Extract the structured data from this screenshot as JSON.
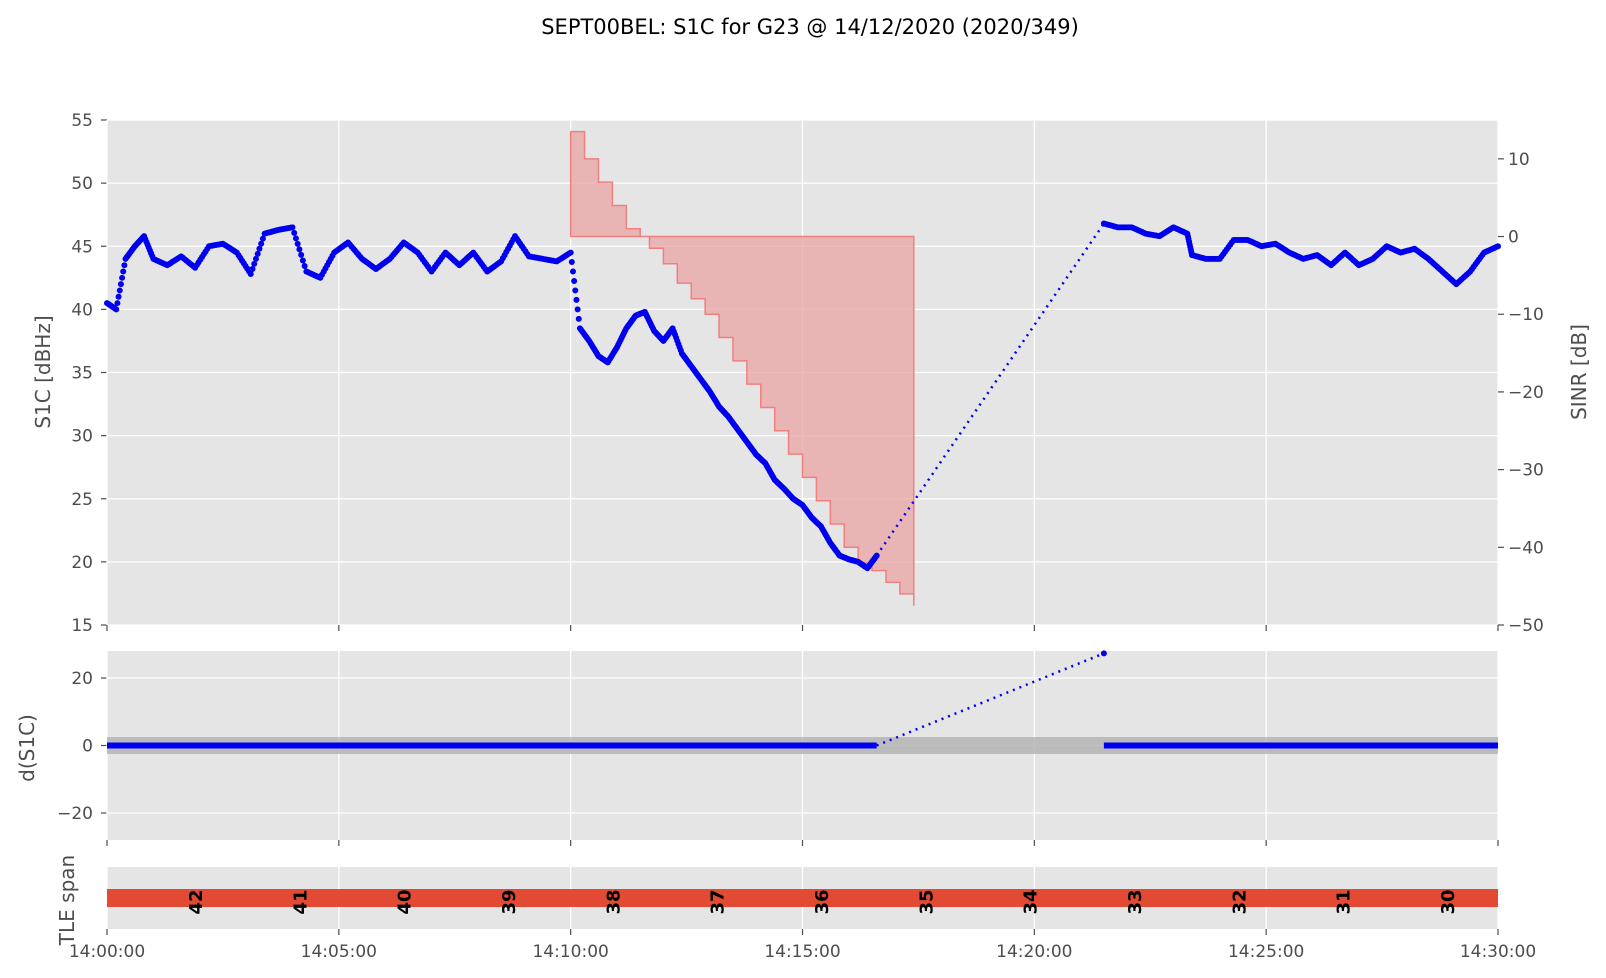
{
  "figure": {
    "title": "SEPT00BEL: S1C for G23 @ 14/12/2020 (2020/349)",
    "colors": {
      "series": "#0000ee",
      "sinr_fill": "#e8a3a3",
      "sinr_edge": "#f08080",
      "band": "#b0b0b0",
      "tle_bar": "#e24a33",
      "panel": "#e5e5e5"
    }
  },
  "chart_data": [
    {
      "type": "scatter",
      "name": "s1c-panel",
      "ylabel": "S1C [dBHz]",
      "ylabel_right": "SINR [dB]",
      "x_tick_labels": [
        "14:00:00",
        "14:05:00",
        "14:10:00",
        "14:15:00",
        "14:20:00",
        "14:25:00",
        "14:30:00"
      ],
      "x_ticks_min": [
        0,
        5,
        10,
        15,
        20,
        25,
        30
      ],
      "xlim": [
        0,
        30
      ],
      "ylim": [
        15,
        55
      ],
      "yticks": [
        15,
        20,
        25,
        30,
        35,
        40,
        45,
        50,
        55
      ],
      "ylim_right": [
        -50,
        15
      ],
      "yticks_right": [
        -50,
        -40,
        -30,
        -20,
        -10,
        0,
        10
      ],
      "grid": true,
      "series": [
        {
          "kind": "scatter",
          "x": [
            0.0,
            0.2,
            0.4,
            0.6,
            0.8,
            1.0,
            1.3,
            1.6,
            1.9,
            2.2,
            2.5,
            2.8,
            3.1,
            3.4,
            3.7,
            4.0,
            4.3,
            4.6,
            4.9,
            5.2,
            5.5,
            5.8,
            6.1,
            6.4,
            6.7,
            7.0,
            7.3,
            7.6,
            7.9,
            8.2,
            8.5,
            8.8,
            9.1,
            9.4,
            9.7,
            10.0,
            10.2,
            10.4,
            10.6,
            10.8,
            11.0,
            11.2,
            11.4,
            11.6,
            11.8,
            12.0,
            12.2,
            12.4,
            12.6,
            12.8,
            13.0,
            13.2,
            13.4,
            13.6,
            13.8,
            14.0,
            14.2,
            14.4,
            14.6,
            14.8,
            15.0,
            15.2,
            15.4,
            15.6,
            15.8,
            16.0,
            16.2,
            16.4,
            16.6
          ],
          "y": [
            40.5,
            40.0,
            44.0,
            45.0,
            45.8,
            44.0,
            43.5,
            44.2,
            43.3,
            45.0,
            45.2,
            44.5,
            42.8,
            46.0,
            46.3,
            46.5,
            43.0,
            42.5,
            44.5,
            45.3,
            44.0,
            43.2,
            44.0,
            45.3,
            44.5,
            43.0,
            44.5,
            43.5,
            44.5,
            43.0,
            43.8,
            45.8,
            44.2,
            44.0,
            43.8,
            44.5,
            38.5,
            37.5,
            36.3,
            35.8,
            37.0,
            38.5,
            39.5,
            39.8,
            38.3,
            37.5,
            38.5,
            36.5,
            35.5,
            34.5,
            33.5,
            32.3,
            31.5,
            30.5,
            29.5,
            28.5,
            27.8,
            26.5,
            25.8,
            25.0,
            24.5,
            23.5,
            22.8,
            21.5,
            20.5,
            20.2,
            20.0,
            19.5,
            20.5
          ]
        },
        {
          "kind": "dotted",
          "x": [
            16.6,
            21.5
          ],
          "y": [
            20.5,
            46.8
          ]
        },
        {
          "kind": "scatter",
          "x": [
            21.5,
            21.8,
            22.1,
            22.4,
            22.7,
            23.0,
            23.3,
            23.4,
            23.7,
            24.0,
            24.3,
            24.6,
            24.9,
            25.2,
            25.5,
            25.8,
            26.1,
            26.4,
            26.7,
            27.0,
            27.3,
            27.6,
            27.9,
            28.2,
            28.5,
            28.8,
            29.1,
            29.4,
            29.7,
            30.0
          ],
          "y": [
            46.8,
            46.5,
            46.5,
            46.0,
            45.8,
            46.5,
            46.0,
            44.3,
            44.0,
            44.0,
            45.5,
            45.5,
            45.0,
            45.2,
            44.5,
            44.0,
            44.3,
            43.5,
            44.5,
            43.5,
            44.0,
            45.0,
            44.5,
            44.8,
            44.0,
            43.0,
            42.0,
            43.0,
            44.5,
            45.0
          ]
        }
      ],
      "sinr": {
        "x": [
          10.0,
          10.3,
          10.6,
          10.9,
          11.2,
          11.5,
          11.7,
          12.0,
          12.3,
          12.6,
          12.9,
          13.2,
          13.5,
          13.8,
          14.1,
          14.4,
          14.7,
          15.0,
          15.3,
          15.6,
          15.9,
          16.2,
          16.5,
          16.8,
          17.1,
          17.4
        ],
        "y": [
          13.5,
          10.0,
          7.0,
          4.0,
          1.0,
          0.0,
          -1.5,
          -3.5,
          -6.0,
          -8.0,
          -10.0,
          -13.0,
          -16.0,
          -19.0,
          -22.0,
          -25.0,
          -28.0,
          -31.0,
          -34.0,
          -37.0,
          -40.0,
          -42.0,
          -43.0,
          -44.5,
          -46.0,
          -47.5
        ],
        "upper": 0.0,
        "x_end": 17.4
      }
    },
    {
      "type": "scatter",
      "name": "ds1c-panel",
      "ylabel": "d(S1C)",
      "xlim": [
        0,
        30
      ],
      "ylim": [
        -28,
        28
      ],
      "yticks": [
        -20,
        0,
        20
      ],
      "band": [
        -2.5,
        2.5
      ],
      "grid": true,
      "series": [
        {
          "kind": "band-dots",
          "x_range": [
            0,
            16.6
          ],
          "y": 0
        },
        {
          "kind": "dotted",
          "x": [
            16.6,
            21.5
          ],
          "y": [
            0,
            27.3
          ]
        },
        {
          "kind": "band-dots",
          "x_range": [
            21.5,
            30
          ],
          "y": 0
        }
      ]
    },
    {
      "type": "bar",
      "name": "tle-panel",
      "ylabel": "TLE span",
      "xlim": [
        0,
        30
      ],
      "span_labels": [
        "42",
        "41",
        "40",
        "39",
        "38",
        "37",
        "36",
        "35",
        "34",
        "33",
        "32",
        "31",
        "30"
      ],
      "span_positions_min": [
        1.9,
        4.15,
        6.4,
        8.65,
        10.9,
        13.15,
        15.4,
        17.65,
        19.9,
        22.15,
        24.4,
        26.65,
        28.9
      ]
    }
  ]
}
